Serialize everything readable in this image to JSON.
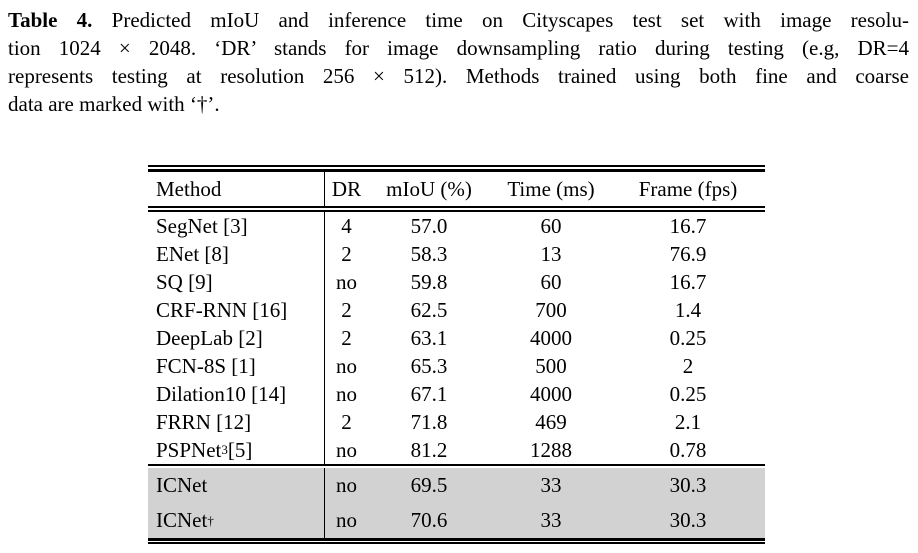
{
  "caption": {
    "label": "Table 4.",
    "lines": [
      " Predicted mIoU and inference time on Cityscapes test set with image resolu-",
      "tion 1024 × 2048. ‘DR’ stands for image downsampling ratio during testing (e.g, DR=4",
      "represents testing at resolution 256 × 512). Methods trained using both fine and coarse",
      "data are marked with ‘†’."
    ]
  },
  "table": {
    "columns": [
      "Method",
      "DR",
      "mIoU (%)",
      "Time (ms)",
      "Frame (fps)"
    ],
    "highlight_color": "#d2d2d2",
    "rule_color": "#000000",
    "rows": [
      {
        "method": "SegNet [3]",
        "sup": "",
        "rest": "",
        "dr": "4",
        "miou": "57.0",
        "time": "60",
        "frame": "16.7",
        "highlight": false
      },
      {
        "method": "ENet [8]",
        "sup": "",
        "rest": "",
        "dr": "2",
        "miou": "58.3",
        "time": "13",
        "frame": "76.9",
        "highlight": false
      },
      {
        "method": "SQ [9]",
        "sup": "",
        "rest": "",
        "dr": "no",
        "miou": "59.8",
        "time": "60",
        "frame": "16.7",
        "highlight": false
      },
      {
        "method": "CRF-RNN [16]",
        "sup": "",
        "rest": "",
        "dr": "2",
        "miou": "62.5",
        "time": "700",
        "frame": "1.4",
        "highlight": false
      },
      {
        "method": "DeepLab [2]",
        "sup": "",
        "rest": "",
        "dr": "2",
        "miou": "63.1",
        "time": "4000",
        "frame": "0.25",
        "highlight": false
      },
      {
        "method": "FCN-8S [1]",
        "sup": "",
        "rest": "",
        "dr": "no",
        "miou": "65.3",
        "time": "500",
        "frame": "2",
        "highlight": false
      },
      {
        "method": "Dilation10 [14]",
        "sup": "",
        "rest": "",
        "dr": "no",
        "miou": "67.1",
        "time": "4000",
        "frame": "0.25",
        "highlight": false
      },
      {
        "method": "FRRN [12]",
        "sup": "",
        "rest": "",
        "dr": "2",
        "miou": "71.8",
        "time": "469",
        "frame": "2.1",
        "highlight": false
      },
      {
        "method": "PSPNet",
        "sup": "3",
        "rest": " [5]",
        "dr": "no",
        "miou": "81.2",
        "time": "1288",
        "frame": "0.78",
        "highlight": false
      },
      {
        "method": "ICNet",
        "sup": "",
        "rest": "",
        "dr": "no",
        "miou": "69.5",
        "time": "33",
        "frame": "30.3",
        "highlight": true
      },
      {
        "method": "ICNet",
        "sup": "†",
        "rest": "",
        "dr": "no",
        "miou": "70.6",
        "time": "33",
        "frame": "30.3",
        "highlight": true
      }
    ]
  }
}
